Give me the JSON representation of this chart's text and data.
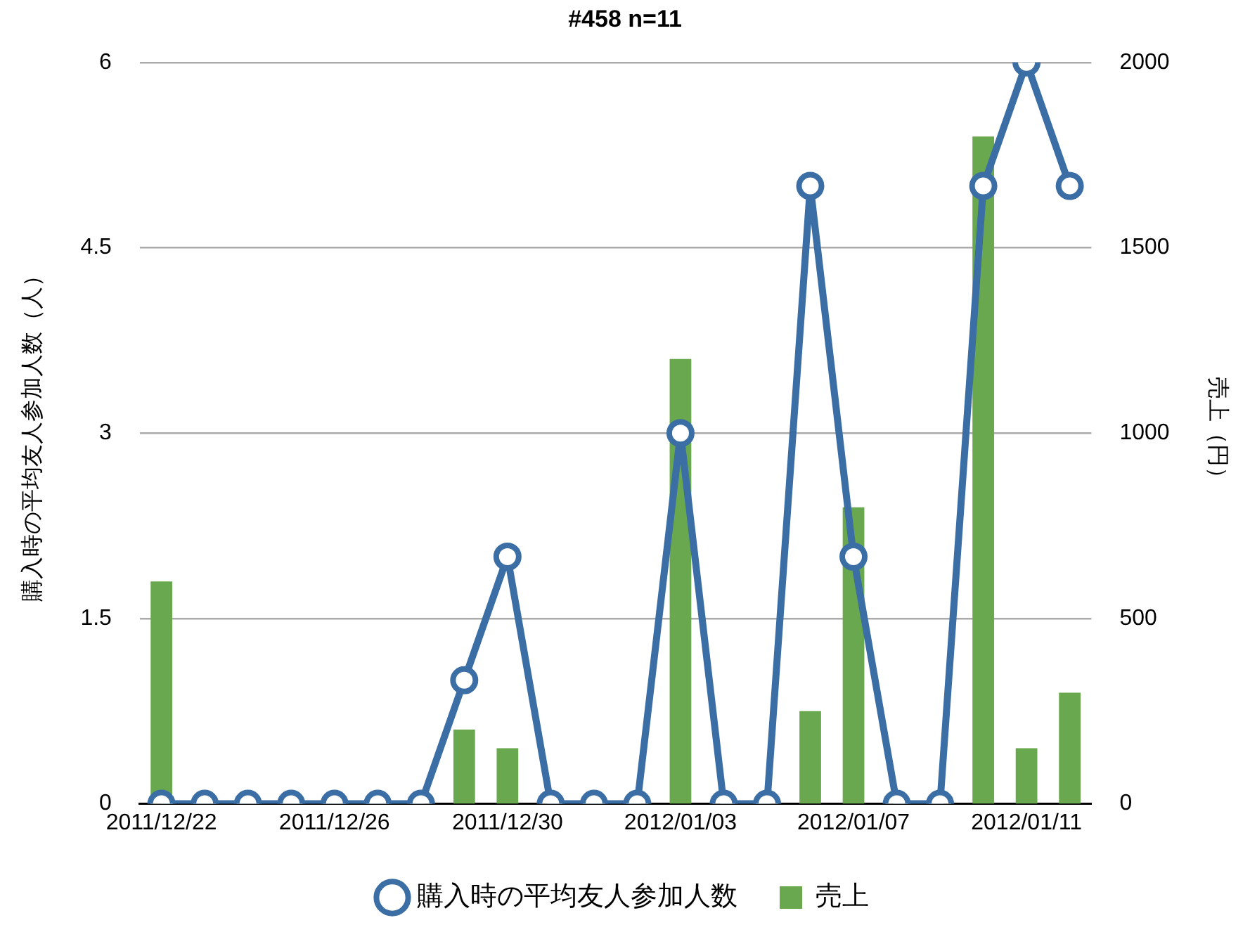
{
  "chart_data": {
    "type": "bar",
    "title": "#458 n=11",
    "ylabel": "購入時の平均友人参加人数（人）",
    "y2label": "売上（円）",
    "categories": [
      "2011/12/22",
      null,
      null,
      null,
      "2011/12/26",
      null,
      null,
      null,
      "2011/12/30",
      null,
      null,
      null,
      "2012/01/03",
      null,
      null,
      null,
      "2012/01/07",
      null,
      null,
      null,
      "2012/01/11",
      null
    ],
    "series": [
      {
        "name": "購入時の平均友人参加人数",
        "type": "line",
        "color": "#3b6ea5",
        "values": [
          0,
          0,
          0,
          0,
          0,
          0,
          0,
          1,
          2,
          0,
          0,
          0,
          3,
          0,
          0,
          5,
          2,
          0,
          0,
          5,
          6,
          5
        ]
      },
      {
        "name": "売上",
        "type": "bar",
        "axis": "y2",
        "color": "#6aa84f",
        "values": [
          600,
          null,
          null,
          null,
          null,
          null,
          null,
          200,
          150,
          null,
          null,
          null,
          1200,
          null,
          null,
          250,
          800,
          null,
          null,
          1800,
          150,
          300
        ]
      }
    ],
    "ylim": [
      0,
      6
    ],
    "yticks": [
      0,
      1.5,
      3,
      4.5,
      6
    ],
    "y2lim": [
      0,
      2000
    ],
    "y2ticks": [
      0,
      500,
      1000,
      1500,
      2000
    ],
    "grid": "y",
    "legend": "bottom",
    "marker": "circle",
    "line_style": "solid"
  }
}
